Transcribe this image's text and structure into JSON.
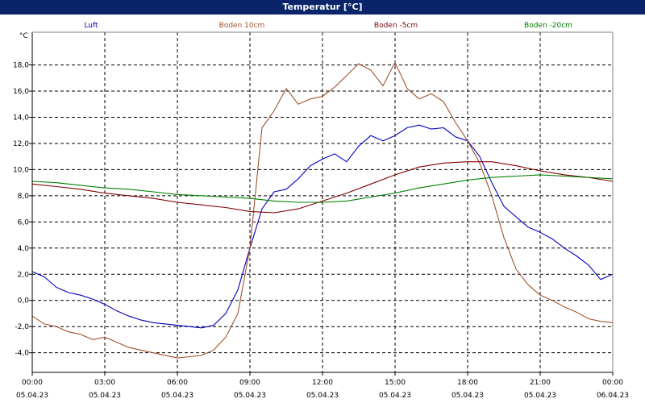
{
  "window": {
    "title": "Temperatur [°C]"
  },
  "chart_data": {
    "type": "line",
    "ylabel": "°C",
    "ylim": [
      -5.5,
      20.5
    ],
    "grid": true,
    "legend_position": "top",
    "y_ticks": [
      "-4,0",
      "-2,0",
      "0,0",
      "2,0",
      "4,0",
      "6,0",
      "8,0",
      "10,0",
      "12,0",
      "14,0",
      "16,0",
      "18,0"
    ],
    "y_tick_values": [
      -4,
      -2,
      0,
      2,
      4,
      6,
      8,
      10,
      12,
      14,
      16,
      18
    ],
    "x_ticks": [
      {
        "time": "00:00",
        "date": "05.04.23",
        "hour": 0
      },
      {
        "time": "03:00",
        "date": "05.04.23",
        "hour": 3
      },
      {
        "time": "06:00",
        "date": "05.04.23",
        "hour": 6
      },
      {
        "time": "09:00",
        "date": "05.04.23",
        "hour": 9
      },
      {
        "time": "12:00",
        "date": "05.04.23",
        "hour": 12
      },
      {
        "time": "15:00",
        "date": "05.04.23",
        "hour": 15
      },
      {
        "time": "18:00",
        "date": "05.04.23",
        "hour": 18
      },
      {
        "time": "21:00",
        "date": "05.04.23",
        "hour": 21
      },
      {
        "time": "00:00",
        "date": "06.04.23",
        "hour": 24
      }
    ],
    "series": [
      {
        "name": "Luft",
        "color": "#0000c0",
        "x": [
          0,
          0.5,
          1,
          1.5,
          2,
          2.5,
          3,
          3.5,
          4,
          4.5,
          5,
          5.5,
          6,
          6.5,
          7,
          7.5,
          8,
          8.5,
          9,
          9.5,
          10,
          10.5,
          11,
          11.5,
          12,
          12.5,
          13,
          13.5,
          14,
          14.5,
          15,
          15.5,
          16,
          16.5,
          17,
          17.5,
          18,
          18.5,
          19,
          19.5,
          20,
          20.5,
          21,
          21.5,
          22,
          22.5,
          23,
          23.5,
          24
        ],
        "y": [
          2.2,
          1.8,
          1,
          0.6,
          0.4,
          0.1,
          -0.3,
          -0.8,
          -1.2,
          -1.5,
          -1.7,
          -1.8,
          -1.9,
          -2,
          -2.1,
          -1.9,
          -1,
          0.8,
          4,
          7,
          8.3,
          8.5,
          9.3,
          10.3,
          10.8,
          11.2,
          10.6,
          11.8,
          12.6,
          12.2,
          12.6,
          13.2,
          13.4,
          13.1,
          13.2,
          12.5,
          12.2,
          11,
          9,
          7.2,
          6.4,
          5.6,
          5.2,
          4.7,
          4,
          3.4,
          2.7,
          1.6,
          2
        ]
      },
      {
        "name": "Boden 10cm",
        "color": "#a0522d",
        "x": [
          0,
          0.5,
          1,
          1.5,
          2,
          2.5,
          3,
          3.5,
          4,
          4.5,
          5,
          5.5,
          6,
          6.5,
          7,
          7.5,
          8,
          8.5,
          9,
          9.5,
          10,
          10.5,
          11,
          11.5,
          12,
          12.5,
          13,
          13.5,
          14,
          14.5,
          15,
          15.5,
          16,
          16.5,
          17,
          17.5,
          18,
          18.5,
          19,
          19.5,
          20,
          20.5,
          21,
          21.5,
          22,
          22.5,
          23,
          23.5,
          24
        ],
        "y": [
          -1.2,
          -1.8,
          -2,
          -2.4,
          -2.6,
          -3,
          -2.8,
          -3.2,
          -3.6,
          -3.8,
          -4,
          -4.2,
          -4.4,
          -4.3,
          -4.2,
          -3.8,
          -2.8,
          -1,
          4,
          13.2,
          14.5,
          16.2,
          15,
          15.4,
          15.6,
          16.3,
          17.2,
          18.1,
          17.6,
          16.4,
          18.2,
          16.2,
          15.4,
          15.8,
          15.2,
          13.6,
          12.2,
          10.5,
          8,
          4.8,
          2.4,
          1.2,
          0.4,
          0,
          -0.5,
          -0.9,
          -1.4,
          -1.6,
          -1.7
        ]
      },
      {
        "name": "Boden -5cm",
        "color": "#800000",
        "x": [
          0,
          1,
          2,
          3,
          4,
          5,
          6,
          7,
          8,
          9,
          10,
          11,
          12,
          13,
          14,
          15,
          16,
          17,
          18,
          19,
          20,
          21,
          22,
          23,
          24
        ],
        "y": [
          8.9,
          8.7,
          8.5,
          8.2,
          8,
          7.8,
          7.5,
          7.3,
          7.1,
          6.8,
          6.7,
          7,
          7.6,
          8.2,
          8.9,
          9.6,
          10.2,
          10.5,
          10.6,
          10.6,
          10.3,
          9.9,
          9.6,
          9.4,
          9.1
        ]
      },
      {
        "name": "Boden -20cm",
        "color": "#008000",
        "x": [
          0,
          1,
          2,
          3,
          4,
          5,
          6,
          7,
          8,
          9,
          10,
          11,
          12,
          13,
          14,
          15,
          16,
          17,
          18,
          19,
          20,
          21,
          22,
          23,
          24
        ],
        "y": [
          9.1,
          9,
          8.8,
          8.6,
          8.5,
          8.3,
          8.1,
          8,
          7.9,
          7.8,
          7.6,
          7.5,
          7.5,
          7.6,
          7.9,
          8.2,
          8.6,
          8.9,
          9.2,
          9.4,
          9.5,
          9.6,
          9.5,
          9.4,
          9.3
        ]
      }
    ]
  }
}
